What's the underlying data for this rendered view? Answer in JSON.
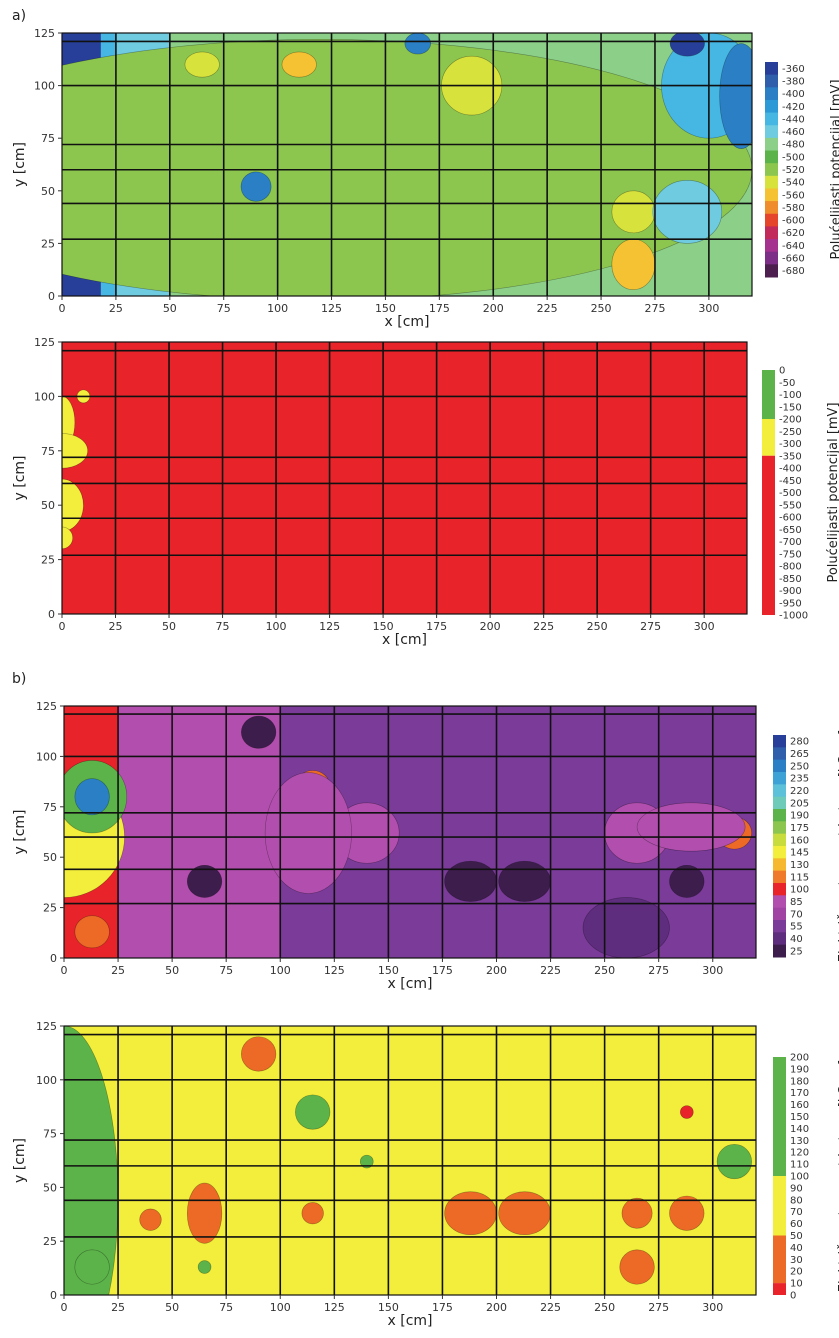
{
  "labels": {
    "part_a": "a)",
    "part_b": "b)"
  },
  "colors": {
    "red": "#e8242a",
    "yellow": "#f2ee3b",
    "green": "#5cb34a",
    "orange": "#ec6a26",
    "violet": "#7a3b99",
    "magenta": "#b24fae",
    "deep_blue": "#283f99"
  },
  "chart_data": [
    {
      "type": "heatmap",
      "id": "a1",
      "xlabel": "x [cm]",
      "ylabel": "y [cm]",
      "xlim": [
        0,
        320
      ],
      "ylim": [
        0,
        125
      ],
      "x_ticks": [
        "0",
        "25",
        "50",
        "75",
        "100",
        "125",
        "150",
        "175",
        "200",
        "225",
        "250",
        "275",
        "300"
      ],
      "y_ticks": [
        "0",
        "25",
        "50",
        "75",
        "100",
        "125"
      ],
      "colorbar": {
        "label": "Polućelijasti potencijal [mV]",
        "levels": [
          "-360",
          "-380",
          "-400",
          "-420",
          "-440",
          "-460",
          "-480",
          "-500",
          "-520",
          "-540",
          "-560",
          "-580",
          "-600",
          "-620",
          "-640",
          "-660",
          "-680"
        ],
        "colors": [
          "#283f99",
          "#2f5eab",
          "#2a7fc5",
          "#2c9ad6",
          "#46b6e3",
          "#6fcbdf",
          "#8bcf88",
          "#5cb34a",
          "#8dc64f",
          "#d8e23c",
          "#f5c234",
          "#ef8c2c",
          "#e5462b",
          "#c22a5b",
          "#a6328f",
          "#7d2e87",
          "#4c1f4f"
        ]
      },
      "grid_lines_cm": {
        "vertical": [
          25,
          50,
          75,
          100,
          125,
          150,
          175,
          200,
          225,
          250,
          275,
          300
        ],
        "horizontal": [
          27,
          44,
          60,
          72,
          100,
          121
        ]
      }
    },
    {
      "type": "heatmap",
      "id": "a2",
      "xlabel": "x [cm]",
      "ylabel": "y [cm]",
      "xlim": [
        0,
        320
      ],
      "ylim": [
        0,
        125
      ],
      "x_ticks": [
        "0",
        "25",
        "50",
        "75",
        "100",
        "125",
        "150",
        "175",
        "200",
        "225",
        "250",
        "275",
        "300"
      ],
      "y_ticks": [
        "0",
        "25",
        "50",
        "75",
        "100",
        "125"
      ],
      "colorbar": {
        "label": "Polućelijasti potencijal [mV]",
        "levels": [
          "0",
          "-50",
          "-100",
          "-150",
          "-200",
          "-250",
          "-300",
          "-350",
          "-400",
          "-450",
          "-500",
          "-550",
          "-600",
          "-650",
          "-700",
          "-750",
          "-800",
          "-850",
          "-900",
          "-950",
          "-1000"
        ],
        "bands": [
          {
            "from": "0",
            "to": "-200",
            "color": "#5cb34a"
          },
          {
            "from": "-200",
            "to": "-350",
            "color": "#f2ee3b"
          },
          {
            "from": "-350",
            "to": "-1000",
            "color": "#e8242a"
          }
        ]
      },
      "grid_lines_cm": {
        "vertical": [
          25,
          50,
          75,
          100,
          125,
          150,
          175,
          200,
          225,
          250,
          275,
          300
        ],
        "horizontal": [
          27,
          44,
          60,
          72,
          100,
          121
        ]
      }
    },
    {
      "type": "heatmap",
      "id": "b1",
      "xlabel": "x [cm]",
      "ylabel": "y [cm]",
      "xlim": [
        0,
        320
      ],
      "ylim": [
        0,
        125
      ],
      "x_ticks": [
        "0",
        "25",
        "50",
        "75",
        "100",
        "125",
        "150",
        "175",
        "200",
        "225",
        "250",
        "275",
        "300"
      ],
      "y_ticks": [
        "0",
        "25",
        "50",
        "75",
        "100",
        "125"
      ],
      "colorbar": {
        "label": "Električna otpornost betona [kΩcm]",
        "levels": [
          "280",
          "265",
          "250",
          "235",
          "220",
          "205",
          "190",
          "175",
          "160",
          "145",
          "130",
          "115",
          "100",
          "85",
          "70",
          "55",
          "40",
          "25"
        ],
        "colors": [
          "#283f99",
          "#2f5eab",
          "#2a7fc5",
          "#3da3d6",
          "#5cc1d9",
          "#6fcbb9",
          "#5cb34a",
          "#8dc64f",
          "#c9dc3e",
          "#f2ee3b",
          "#f5b82f",
          "#ef7a2a",
          "#e8242a",
          "#b24fae",
          "#a043a2",
          "#7a3b99",
          "#5e2d7d",
          "#3d1d4c"
        ]
      },
      "grid_lines_cm": {
        "vertical": [
          25,
          50,
          75,
          100,
          125,
          150,
          175,
          200,
          225,
          250,
          275,
          300
        ],
        "horizontal": [
          27,
          44,
          60,
          72,
          100,
          121
        ]
      }
    },
    {
      "type": "heatmap",
      "id": "b2",
      "xlabel": "x [cm]",
      "ylabel": "y [cm]",
      "xlim": [
        0,
        320
      ],
      "ylim": [
        0,
        125
      ],
      "x_ticks": [
        "0",
        "25",
        "50",
        "75",
        "100",
        "125",
        "150",
        "175",
        "200",
        "225",
        "250",
        "275",
        "300"
      ],
      "y_ticks": [
        "0",
        "25",
        "50",
        "75",
        "100",
        "125"
      ],
      "colorbar": {
        "label": "Električna otpornost betona [kΩcm]",
        "levels": [
          "200",
          "190",
          "180",
          "170",
          "160",
          "150",
          "140",
          "130",
          "120",
          "110",
          "100",
          "90",
          "80",
          "70",
          "60",
          "50",
          "40",
          "30",
          "20",
          "10",
          "0"
        ],
        "bands": [
          {
            "from": "200",
            "to": "100",
            "color": "#5cb34a"
          },
          {
            "from": "100",
            "to": "50",
            "color": "#f2ee3b"
          },
          {
            "from": "50",
            "to": "10",
            "color": "#ec6a26"
          },
          {
            "from": "10",
            "to": "0",
            "color": "#e8242a"
          }
        ]
      },
      "grid_lines_cm": {
        "vertical": [
          25,
          50,
          75,
          100,
          125,
          150,
          175,
          200,
          225,
          250,
          275,
          300
        ],
        "horizontal": [
          27,
          44,
          60,
          72,
          100,
          121
        ]
      }
    }
  ]
}
